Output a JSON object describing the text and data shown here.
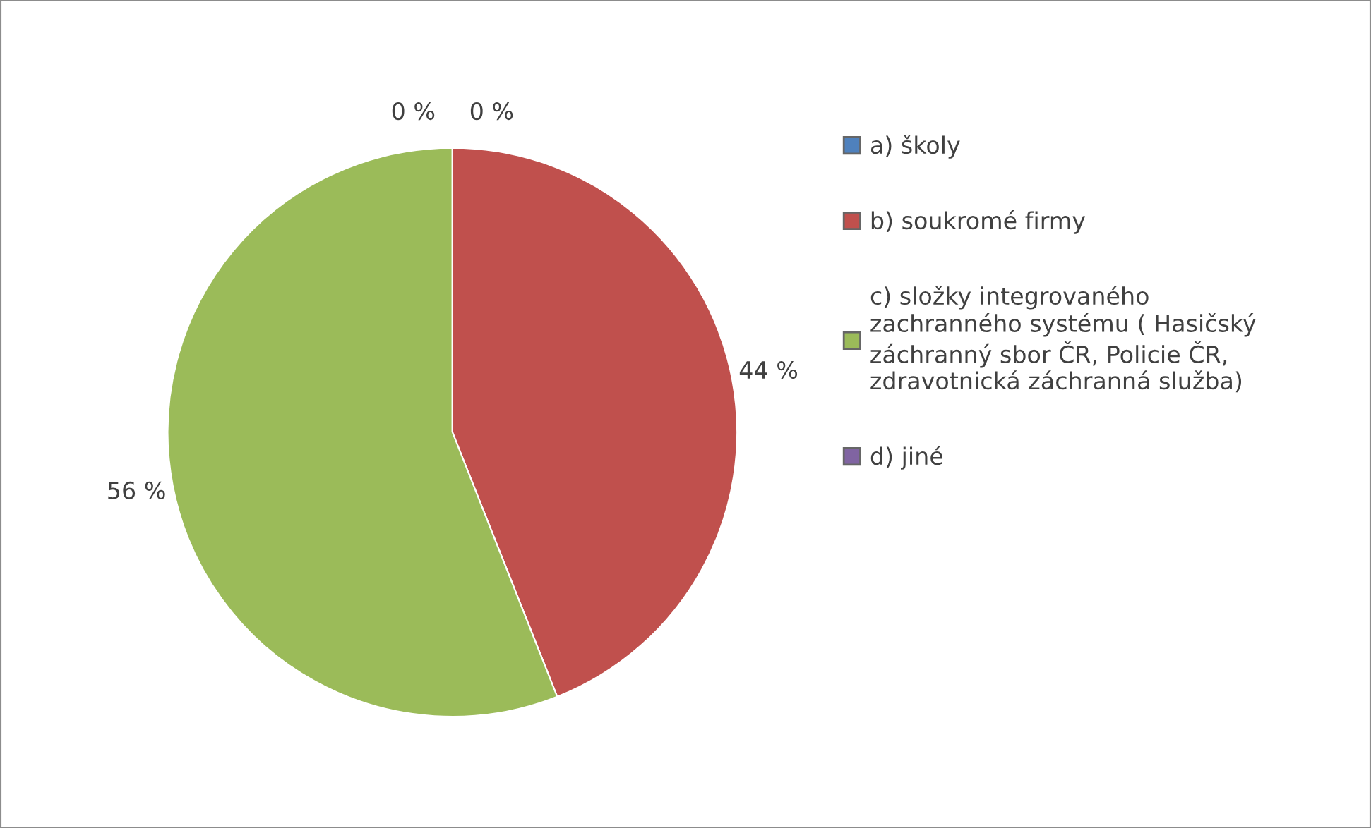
{
  "chart_data": {
    "type": "pie",
    "categories": [
      "a) školy",
      "b) soukromé firmy",
      "c) složky integrovaného\nzachranného systému ( Hasičský\nzáchranný sbor ČR, Policie ČR,\nzdravotnická záchranná služba)",
      "d) jiné"
    ],
    "values": [
      0,
      44,
      56,
      0
    ],
    "value_labels": [
      "0 %",
      "44 %",
      "56 %",
      "0 %"
    ],
    "colors": [
      "#4f81bd",
      "#c0504d",
      "#9bbb59",
      "#8064a2"
    ],
    "legend": "right"
  }
}
